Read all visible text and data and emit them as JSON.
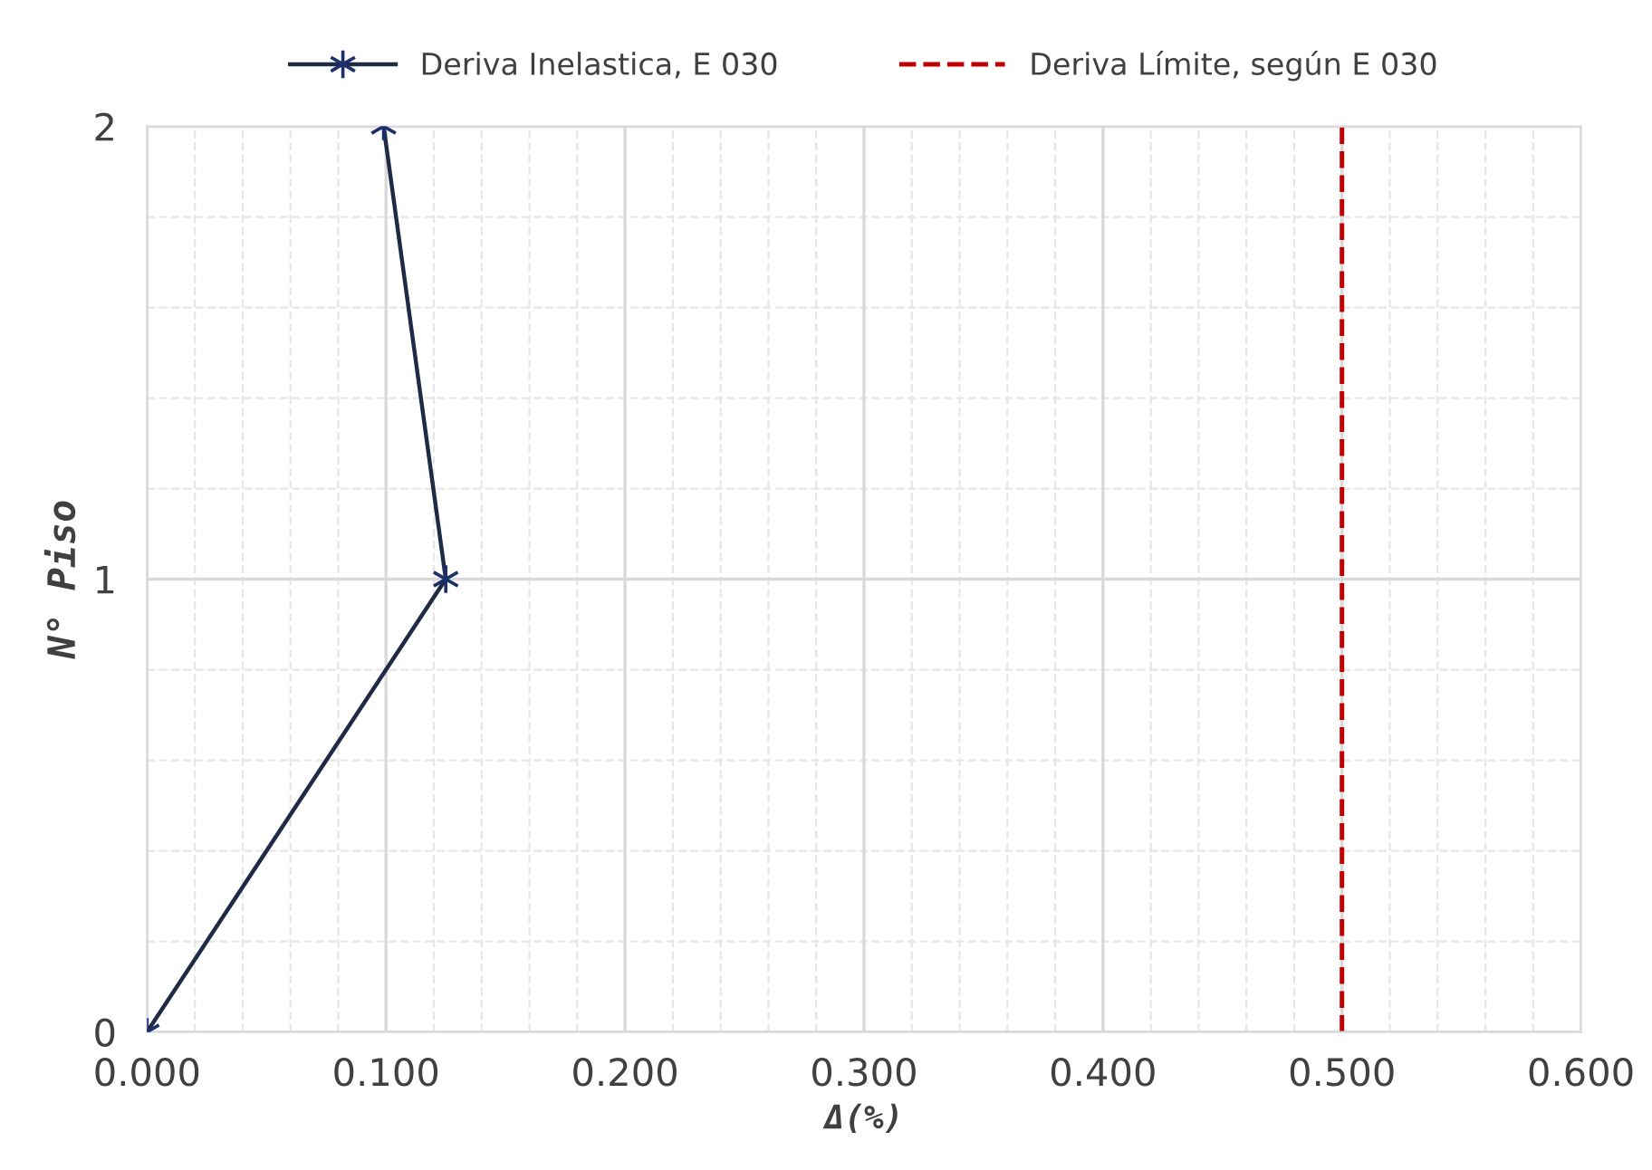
{
  "chart_data": {
    "type": "line",
    "xlabel": "Δ(%)",
    "ylabel": "N° Piso",
    "series": [
      {
        "name": "Deriva Inelastica, E 030",
        "color": "#1f2a44",
        "x": [
          0.0,
          0.125,
          0.099
        ],
        "values": [
          0,
          1,
          2
        ]
      }
    ],
    "ref_lines": [
      {
        "axis": "x",
        "value": 0.5,
        "label": "Deriva Límite, según E 030",
        "color": "#c00000",
        "line_style": "dashed"
      }
    ],
    "xlim": [
      0,
      0.6
    ],
    "xticks": [
      {
        "value": 0,
        "label": "0.000"
      },
      {
        "value": 0.1,
        "label": "0.100"
      },
      {
        "value": 0.2,
        "label": "0.200"
      },
      {
        "value": 0.3,
        "label": "0.300"
      },
      {
        "value": 0.4,
        "label": "0.400"
      },
      {
        "value": 0.5,
        "label": "0.500"
      },
      {
        "value": 0.6,
        "label": "0.600"
      }
    ],
    "ylim": [
      0,
      2
    ],
    "yticks": [
      0,
      1,
      2
    ],
    "grid": true,
    "legend": "top",
    "marker": "cross",
    "line_style": "solid"
  }
}
